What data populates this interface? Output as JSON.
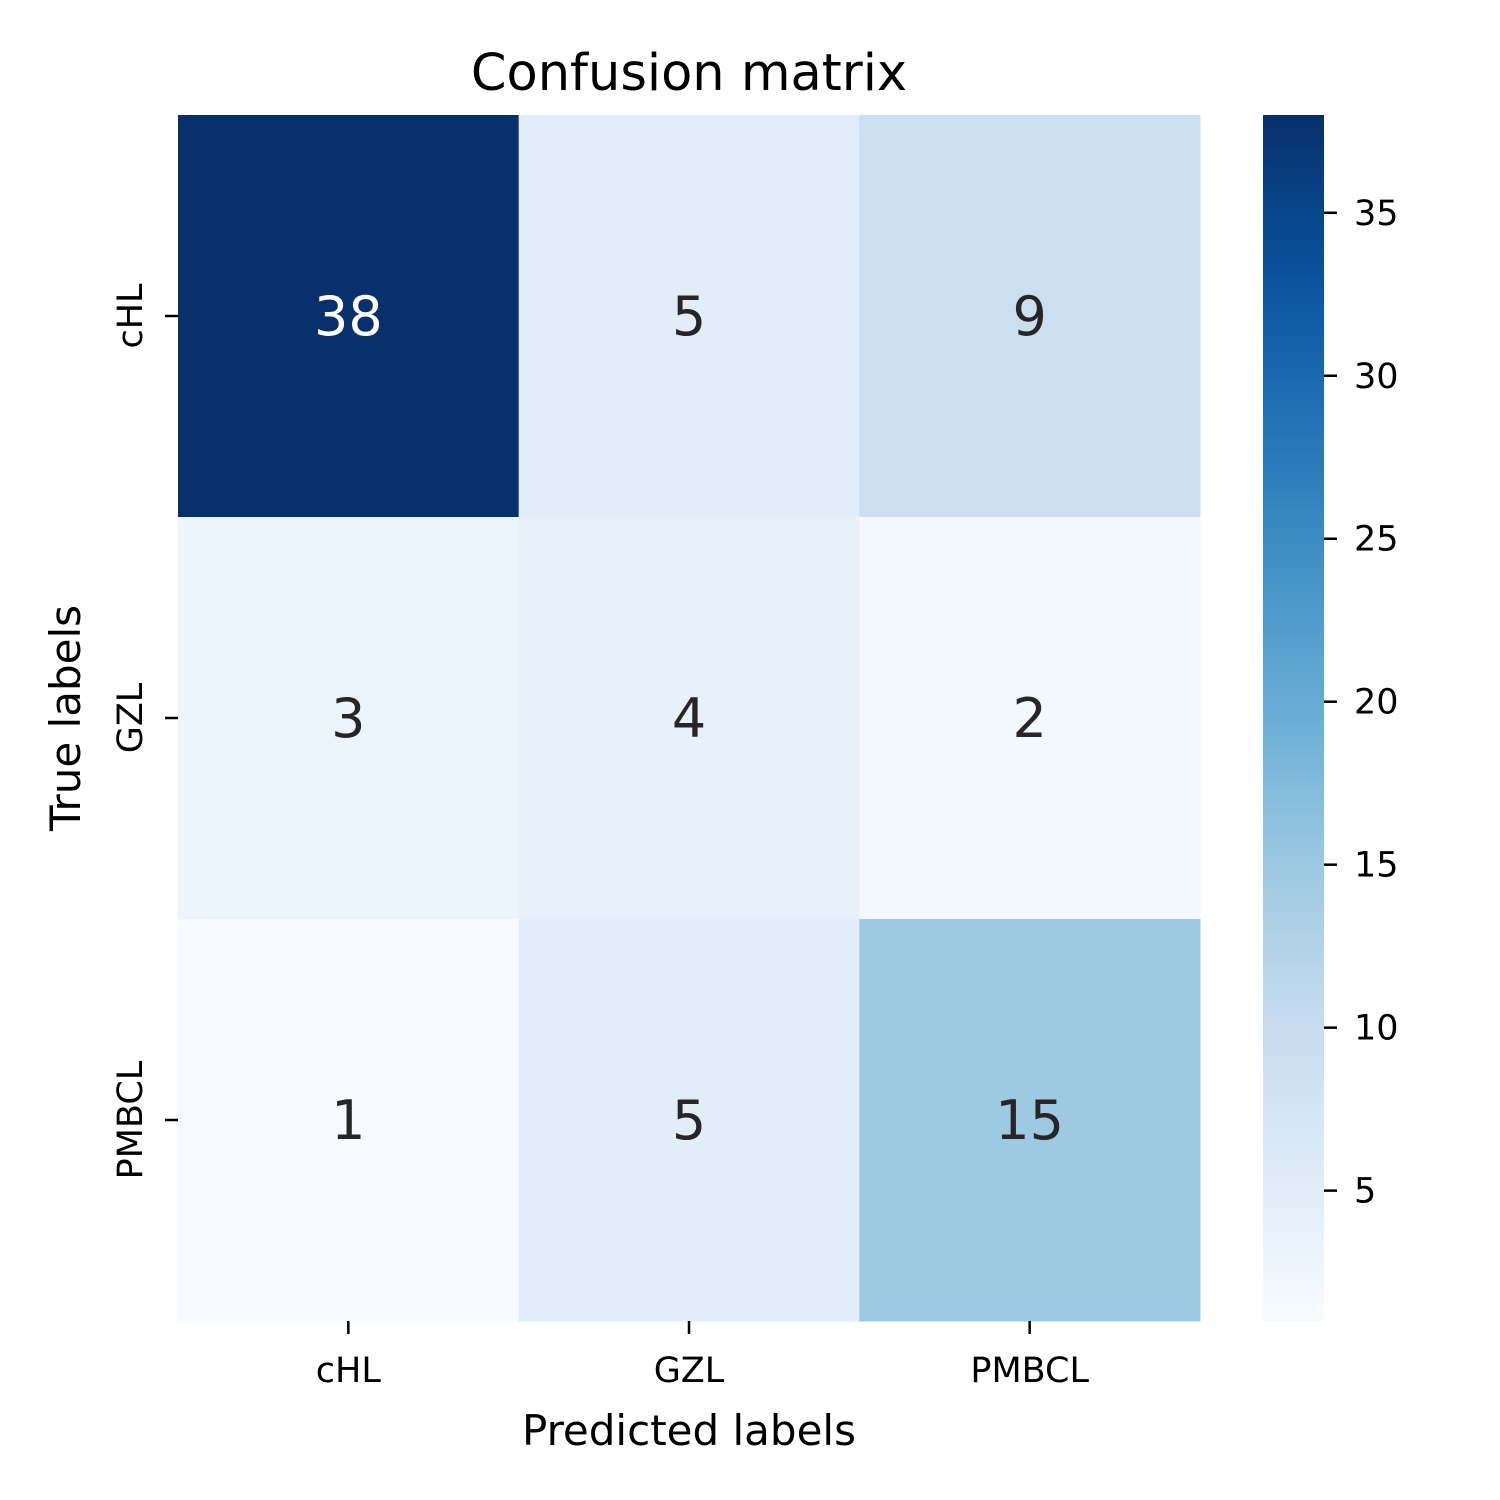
{
  "chart_data": {
    "type": "heatmap",
    "title": "Confusion matrix",
    "xlabel": "Predicted labels",
    "ylabel": "True labels",
    "x_categories": [
      "cHL",
      "GZL",
      "PMBCL"
    ],
    "y_categories": [
      "cHL",
      "GZL",
      "PMBCL"
    ],
    "values": [
      [
        38,
        5,
        9
      ],
      [
        3,
        4,
        2
      ],
      [
        1,
        5,
        15
      ]
    ],
    "colormap": "Blues",
    "color_range": [
      1,
      38
    ],
    "colorbar": {
      "ticks": [
        5,
        10,
        15,
        20,
        25,
        30,
        35
      ],
      "tick_labels": [
        "5",
        "10",
        "15",
        "20",
        "25",
        "30",
        "35"
      ]
    },
    "colors": {
      "annotation_dark": "#262626",
      "annotation_light": "#ffffff"
    }
  }
}
